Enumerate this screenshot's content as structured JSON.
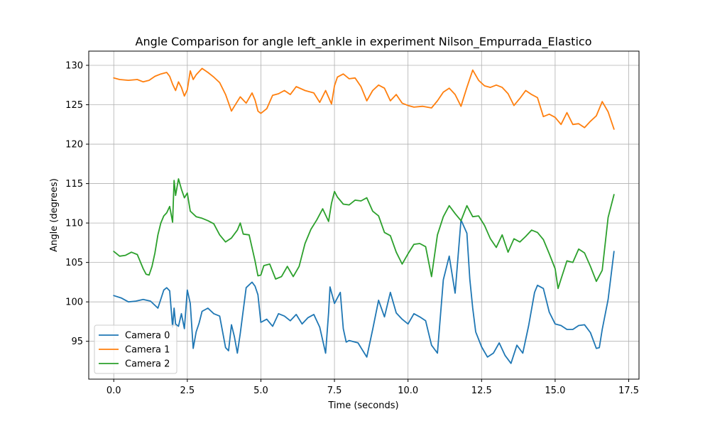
{
  "chart_data": {
    "type": "line",
    "title": "Angle Comparison for angle left_ankle in experiment Nilson_Empurrada_Elastico",
    "xlabel": "Time (seconds)",
    "ylabel": "Angle (degrees)",
    "xlim": [
      -0.85,
      17.85
    ],
    "ylim": [
      90.2,
      131.8
    ],
    "xticks": [
      0.0,
      2.5,
      5.0,
      7.5,
      10.0,
      12.5,
      15.0,
      17.5
    ],
    "xtick_labels": [
      "0.0",
      "2.5",
      "5.0",
      "7.5",
      "10.0",
      "12.5",
      "15.0",
      "17.5"
    ],
    "yticks": [
      95,
      100,
      105,
      110,
      115,
      120,
      125,
      130
    ],
    "ytick_labels": [
      "95",
      "100",
      "105",
      "110",
      "115",
      "120",
      "125",
      "130"
    ],
    "grid": true,
    "legend_position": "lower-left",
    "series": [
      {
        "name": "Camera 0",
        "color": "#1f77b4",
        "x": [
          0,
          0.25,
          0.5,
          0.75,
          1.0,
          1.25,
          1.5,
          1.7,
          1.8,
          1.9,
          2.0,
          2.05,
          2.1,
          2.2,
          2.3,
          2.4,
          2.5,
          2.6,
          2.7,
          2.8,
          2.9,
          3.0,
          3.2,
          3.4,
          3.6,
          3.8,
          3.9,
          4.0,
          4.1,
          4.2,
          4.3,
          4.5,
          4.7,
          4.8,
          4.9,
          5.0,
          5.2,
          5.4,
          5.6,
          5.8,
          6.0,
          6.2,
          6.4,
          6.6,
          6.8,
          7.0,
          7.2,
          7.3,
          7.35,
          7.5,
          7.7,
          7.8,
          7.9,
          8.0,
          8.3,
          8.6,
          8.8,
          9.0,
          9.2,
          9.4,
          9.6,
          9.8,
          10.0,
          10.2,
          10.4,
          10.6,
          10.8,
          11.0,
          11.2,
          11.4,
          11.6,
          11.8,
          12.0,
          12.1,
          12.2,
          12.3,
          12.5,
          12.7,
          12.9,
          13.1,
          13.3,
          13.5,
          13.7,
          13.9,
          14.1,
          14.3,
          14.4,
          14.6,
          14.8,
          15.0,
          15.2,
          15.4,
          15.6,
          15.8,
          16.0,
          16.2,
          16.4,
          16.5,
          16.6,
          16.8,
          17.0
        ],
        "values": [
          100.8,
          100.5,
          100.0,
          100.1,
          100.3,
          100.1,
          99.2,
          101.5,
          101.8,
          101.4,
          96.8,
          99.2,
          97.2,
          96.9,
          98.5,
          96.6,
          101.5,
          99.8,
          94.1,
          96.2,
          97.3,
          98.8,
          99.2,
          98.5,
          98.2,
          94.2,
          93.8,
          97.1,
          95.6,
          93.5,
          96.0,
          101.8,
          102.5,
          102.0,
          100.9,
          97.4,
          97.8,
          96.9,
          98.5,
          98.2,
          97.6,
          98.4,
          97.2,
          98.0,
          98.4,
          96.8,
          93.5,
          98.6,
          101.9,
          99.8,
          101.2,
          96.6,
          94.9,
          95.1,
          94.8,
          93.0,
          96.5,
          100.2,
          98.1,
          101.2,
          98.6,
          97.8,
          97.2,
          98.5,
          98.1,
          97.6,
          94.5,
          93.5,
          102.8,
          105.8,
          101.1,
          110.4,
          108.7,
          102.9,
          99.2,
          96.2,
          94.3,
          93.0,
          93.5,
          94.8,
          93.2,
          92.2,
          94.5,
          93.5,
          97.0,
          101.2,
          102.1,
          101.7,
          98.7,
          97.2,
          97.0,
          96.5,
          96.5,
          97.0,
          97.1,
          96.1,
          94.1,
          94.2,
          96.5,
          100.3,
          106.4
        ]
      },
      {
        "name": "Camera 1",
        "color": "#ff7f0e",
        "x": [
          0,
          0.2,
          0.5,
          0.8,
          1.0,
          1.2,
          1.4,
          1.6,
          1.8,
          1.9,
          2.0,
          2.1,
          2.2,
          2.3,
          2.4,
          2.5,
          2.6,
          2.7,
          2.8,
          3.0,
          3.2,
          3.4,
          3.6,
          3.8,
          4.0,
          4.1,
          4.3,
          4.5,
          4.7,
          4.8,
          4.9,
          5.0,
          5.2,
          5.4,
          5.6,
          5.8,
          6.0,
          6.2,
          6.5,
          6.8,
          7.0,
          7.2,
          7.4,
          7.5,
          7.6,
          7.8,
          8.0,
          8.2,
          8.4,
          8.6,
          8.8,
          9.0,
          9.2,
          9.4,
          9.6,
          9.8,
          10.0,
          10.2,
          10.5,
          10.8,
          11.0,
          11.2,
          11.4,
          11.6,
          11.8,
          12.0,
          12.2,
          12.4,
          12.6,
          12.8,
          13.0,
          13.2,
          13.4,
          13.6,
          13.8,
          14.0,
          14.2,
          14.4,
          14.6,
          14.8,
          15.0,
          15.2,
          15.4,
          15.6,
          15.8,
          16.0,
          16.2,
          16.4,
          16.6,
          16.8,
          17.0
        ],
        "values": [
          128.4,
          128.2,
          128.1,
          128.2,
          127.9,
          128.1,
          128.6,
          128.9,
          129.1,
          128.6,
          127.6,
          126.8,
          127.9,
          127.2,
          126.1,
          126.9,
          129.3,
          128.2,
          128.8,
          129.6,
          129.1,
          128.5,
          127.8,
          126.3,
          124.2,
          124.8,
          126.0,
          125.2,
          126.5,
          125.6,
          124.2,
          123.9,
          124.5,
          126.2,
          126.4,
          126.8,
          126.3,
          127.3,
          126.8,
          126.5,
          125.3,
          126.8,
          125.1,
          127.4,
          128.5,
          128.9,
          128.3,
          128.4,
          127.3,
          125.5,
          126.8,
          127.5,
          127.1,
          125.5,
          126.3,
          125.2,
          124.9,
          124.7,
          124.8,
          124.6,
          125.5,
          126.6,
          127.1,
          126.3,
          124.8,
          127.2,
          129.4,
          128.1,
          127.4,
          127.2,
          127.5,
          127.2,
          126.4,
          124.9,
          125.8,
          126.8,
          126.3,
          125.9,
          123.5,
          123.8,
          123.4,
          122.5,
          124.0,
          122.5,
          122.6,
          122.1,
          122.9,
          123.6,
          125.4,
          124.1,
          121.9
        ]
      },
      {
        "name": "Camera 2",
        "color": "#2ca02c",
        "x": [
          0,
          0.2,
          0.4,
          0.6,
          0.8,
          1.0,
          1.1,
          1.2,
          1.3,
          1.4,
          1.5,
          1.6,
          1.7,
          1.8,
          1.9,
          2.0,
          2.05,
          2.1,
          2.2,
          2.3,
          2.4,
          2.5,
          2.6,
          2.8,
          3.0,
          3.2,
          3.4,
          3.6,
          3.8,
          4.0,
          4.2,
          4.3,
          4.4,
          4.6,
          4.8,
          4.9,
          5.0,
          5.1,
          5.3,
          5.5,
          5.7,
          5.9,
          6.1,
          6.3,
          6.5,
          6.7,
          6.9,
          7.1,
          7.3,
          7.4,
          7.5,
          7.6,
          7.8,
          8.0,
          8.2,
          8.4,
          8.6,
          8.8,
          9.0,
          9.2,
          9.4,
          9.6,
          9.8,
          10.0,
          10.2,
          10.4,
          10.6,
          10.8,
          11.0,
          11.2,
          11.4,
          11.6,
          11.8,
          12.0,
          12.2,
          12.4,
          12.6,
          12.8,
          13.0,
          13.2,
          13.4,
          13.6,
          13.8,
          14.0,
          14.2,
          14.4,
          14.6,
          14.8,
          15.0,
          15.1,
          15.2,
          15.4,
          15.6,
          15.8,
          16.0,
          16.2,
          16.4,
          16.6,
          16.8,
          17.0
        ],
        "values": [
          106.4,
          105.8,
          105.9,
          106.3,
          106.0,
          104.2,
          103.5,
          103.4,
          104.5,
          106.2,
          108.5,
          110.0,
          110.9,
          111.3,
          112.1,
          110.1,
          115.4,
          113.5,
          115.6,
          114.3,
          113.2,
          113.8,
          111.5,
          110.8,
          110.6,
          110.3,
          109.9,
          108.5,
          107.6,
          108.1,
          109.1,
          110.0,
          108.6,
          108.5,
          105.2,
          103.3,
          103.4,
          104.6,
          104.8,
          102.9,
          103.2,
          104.5,
          103.2,
          104.5,
          107.4,
          109.2,
          110.4,
          111.8,
          110.2,
          112.5,
          114.0,
          113.3,
          112.4,
          112.3,
          112.9,
          112.8,
          113.2,
          111.5,
          110.9,
          108.8,
          108.4,
          106.3,
          104.8,
          106.1,
          107.3,
          107.4,
          107.0,
          103.2,
          108.5,
          110.8,
          112.2,
          111.2,
          110.3,
          112.2,
          110.8,
          110.9,
          109.7,
          108.0,
          106.9,
          108.5,
          106.3,
          108.0,
          107.6,
          108.3,
          109.1,
          108.8,
          107.9,
          106.1,
          104.2,
          101.7,
          102.9,
          105.2,
          105.0,
          106.7,
          106.2,
          104.5,
          102.6,
          104.0,
          110.7,
          113.6
        ]
      }
    ]
  }
}
